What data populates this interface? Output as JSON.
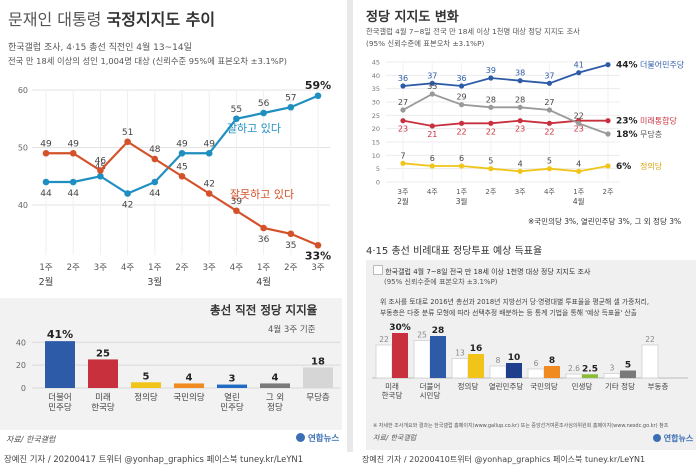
{
  "left": {
    "title_prefix": "문재인 대통령 ",
    "title_bold": "국정지지도 추이",
    "sub1": "한국갤럽 조사, 4·15 총선 직전인 4월 13~14일",
    "sub2": "전국 만 18세 이상의 성인 1,004명 대상 (신뢰수준 95%에 표본오차 ±3.1%P)",
    "source": "자료/ 한국갤럽",
    "logo": "연합뉴스"
  },
  "right": {
    "title": "정당 지지도 변화",
    "sub1": "한국갤럽 4월 7~8일 전국 만 18세 이상 1천명 대상 정당 지지도 조사",
    "sub2": "(95% 신뢰수준에 표본오차 ±3.1%P)",
    "note": "※국민의당 3%, 열린민주당 3%, 그 외 정당 3%",
    "note_bold": [
      "3%",
      "3%",
      "3%"
    ],
    "title2": "4·15 총선 비례대표 정당투표 예상 득표율",
    "legend_text": "한국갤럽 4월 7~8일 전국 만 18세 이상 1천명 대상 정당 지지도 조사",
    "legend_sub": "(95% 신뢰수준에 표본오차 ±3.1%P)",
    "desc1": "위 조사를 토대로 2016년 총선과 2018년 지방선거 당·영령대별 투표율을 평균해 셀 가중처리,",
    "desc2": "부동층은 다중 분류 모형에 따라 선택추정 배분하는 등 통계 기법을 통해 '예상 득표율' 산출",
    "desc2_bold": "'예상 득표율'",
    "fine1": "※ 자세한 조사개요와 결과는 한국갤럽 홈페이지(www.gallup.co.kr) 또는 중앙선거여론조사심의위원회 홈페이지(www.nesdc.go.kr) 참조",
    "fine2": "자료/ 한국갤럽",
    "logo": "연합뉴스"
  },
  "footer_left": "장예진 기자 / 20200417 트위터 @yonhap_graphics  페이스북 tuney.kr/LeYN1",
  "footer_right": "장예진 기자 / 20200410트위터 @yonhap_graphics  페이스북 tuney.kr/LeYN1",
  "colors": {
    "approve": "#1f8fc1",
    "disapprove": "#d4522a",
    "democratic": "#2e5ba8",
    "united_future": "#c8303e",
    "justice": "#f0c419",
    "undecided": "#999999",
    "gray_band": "#f0f0f0"
  },
  "chart_data": [
    {
      "type": "line",
      "x": [
        "1주",
        "2주",
        "3주",
        "4주",
        "1주",
        "2주",
        "3주",
        "4주",
        "1주",
        "2주",
        "3주"
      ],
      "month_labels": [
        {
          "at": 0,
          "label": "2월"
        },
        {
          "at": 4,
          "label": "3월"
        },
        {
          "at": 8,
          "label": "4월"
        }
      ],
      "ylim": [
        40,
        60
      ],
      "yticks": [
        40,
        50,
        60
      ],
      "series": [
        {
          "name": "잘하고 있다",
          "values": [
            44,
            44,
            45,
            42,
            44,
            49,
            49,
            55,
            56,
            57,
            59
          ],
          "labels": [
            "44",
            "44",
            "45",
            "42",
            "44",
            "49",
            "49",
            "55",
            "56",
            "57",
            "59%"
          ]
        },
        {
          "name": "잘못하고 있다",
          "values": [
            49,
            49,
            46,
            51,
            48,
            45,
            42,
            39,
            36,
            35,
            33
          ],
          "labels": [
            "49",
            "49",
            "46",
            "51",
            "48",
            "45",
            "42",
            "39",
            "36",
            "35",
            "33%"
          ]
        }
      ]
    },
    {
      "type": "bar",
      "title": "총선 직전 정당 지지율",
      "subtitle": "4월 3주 기준",
      "categories": [
        "더불어\n민주당",
        "미래\n한국당",
        "정의당",
        "국민의당",
        "열린\n민주당",
        "그 외\n정당",
        "무당층"
      ],
      "values": [
        41,
        25,
        5,
        4,
        3,
        4,
        18
      ],
      "labels": [
        "41%",
        "25",
        "5",
        "4",
        "3",
        "4",
        "18"
      ],
      "ylim": [
        0,
        42
      ],
      "yticks": [
        0,
        20,
        40
      ]
    },
    {
      "type": "line",
      "x": [
        "3주",
        "4주",
        "1주",
        "2주",
        "3주",
        "4주",
        "1주",
        "2주"
      ],
      "month_labels": [
        {
          "at": 0,
          "label": "2월"
        },
        {
          "at": 2,
          "label": "3월"
        },
        {
          "at": 6,
          "label": "4월"
        }
      ],
      "ylim": [
        0,
        45
      ],
      "yticks": [
        0,
        5,
        10,
        15,
        20,
        25,
        30,
        35,
        40,
        45
      ],
      "series": [
        {
          "name": "더불어민주당",
          "values": [
            36,
            37,
            36,
            39,
            38,
            37,
            41,
            44
          ],
          "labels": [
            "36",
            "37",
            "36",
            "39",
            "38",
            "37",
            "41",
            "44%"
          ]
        },
        {
          "name": "미래통합당",
          "values": [
            23,
            21,
            22,
            22,
            23,
            22,
            23,
            23
          ],
          "labels": [
            "23",
            "21",
            "22",
            "22",
            "23",
            "22",
            "23",
            "23%"
          ]
        },
        {
          "name": "무당층",
          "values": [
            27,
            33,
            29,
            28,
            28,
            27,
            22,
            18
          ],
          "labels": [
            "27",
            "33",
            "29",
            "28",
            "28",
            "27",
            "22",
            "18%"
          ]
        },
        {
          "name": "정의당",
          "values": [
            7,
            6,
            6,
            5,
            4,
            5,
            4,
            6
          ],
          "labels": [
            "7",
            "6",
            "6",
            "5",
            "4",
            "5",
            "4",
            "6%"
          ]
        }
      ]
    },
    {
      "type": "bar",
      "categories": [
        "미래\n한국당",
        "더불어\n시민당",
        "정의당",
        "열린민주당",
        "국민의당",
        "민생당",
        "기타 정당",
        "부동층"
      ],
      "series": [
        {
          "name": "한국갤럽 4월 7~8일 전국 만 18세 이상 1천명 대상 정당 지지도 조사",
          "values": [
            22,
            25,
            13,
            8,
            6,
            2.6,
            3,
            22
          ],
          "labels": [
            "22",
            "25",
            "13",
            "8",
            "6",
            "2.6",
            "3",
            "22"
          ]
        },
        {
          "name": "예상 득표율",
          "values": [
            30,
            28,
            16,
            10,
            8,
            2.5,
            5,
            null
          ],
          "labels": [
            "30%",
            "28",
            "16",
            "10",
            "8",
            "2.5",
            "5",
            ""
          ]
        }
      ],
      "ylim": [
        0,
        32
      ]
    }
  ]
}
